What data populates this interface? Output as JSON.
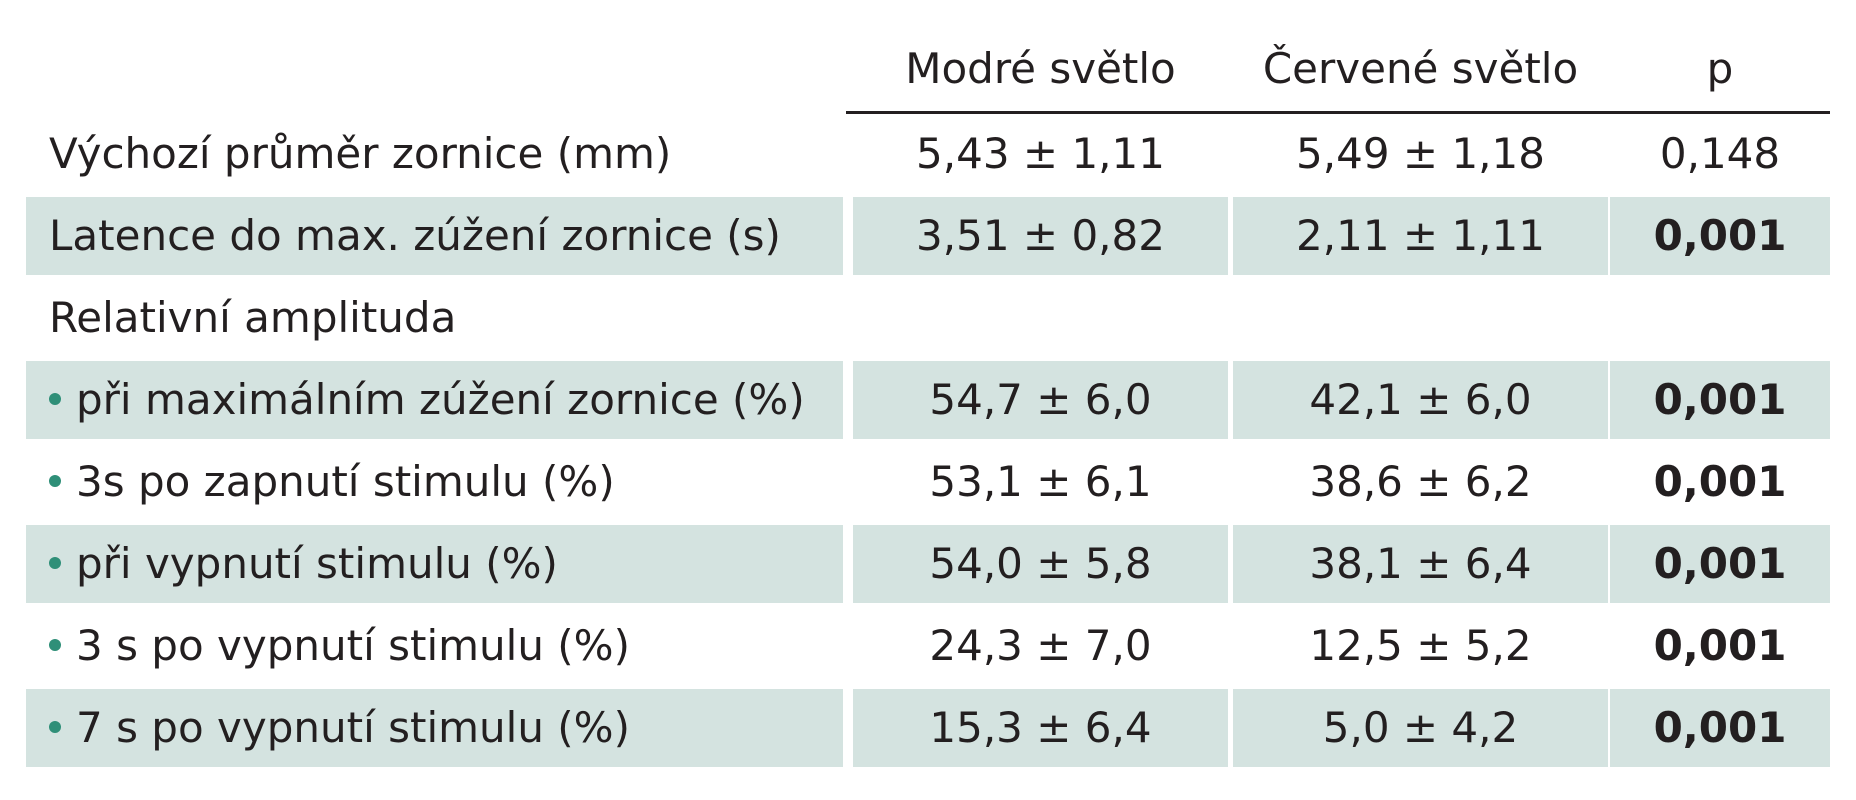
{
  "header": {
    "col_blue": "Modré světlo",
    "col_red": "Červené světlo",
    "col_p": "p"
  },
  "colors": {
    "row_shading": "#d4e3e0",
    "bullet": "#2f8f78",
    "text": "#231f20"
  },
  "rows": [
    {
      "label": "Výchozí průměr zornice (mm)",
      "blue": "5,43 ± 1,11",
      "red": "5,49 ± 1,18",
      "p": "0,148",
      "p_bold": false,
      "bullet": false,
      "shaded": false
    },
    {
      "label": "Latence do max. zúžení zornice (s)",
      "blue": "3,51 ± 0,82",
      "red": "2,11 ± 1,11",
      "p": "0,001",
      "p_bold": true,
      "bullet": false,
      "shaded": true
    },
    {
      "label": "Relativní amplituda",
      "blue": "",
      "red": "",
      "p": "",
      "p_bold": false,
      "bullet": false,
      "shaded": false
    },
    {
      "label": "při maximálním zúžení zornice (%)",
      "blue": "54,7 ± 6,0",
      "red": "42,1 ± 6,0",
      "p": "0,001",
      "p_bold": true,
      "bullet": true,
      "shaded": true
    },
    {
      "label": "3s po zapnutí stimulu (%)",
      "blue": "53,1 ± 6,1",
      "red": "38,6 ± 6,2",
      "p": "0,001",
      "p_bold": true,
      "bullet": true,
      "shaded": false
    },
    {
      "label": "při vypnutí stimulu (%)",
      "blue": "54,0 ± 5,8",
      "red": "38,1 ± 6,4",
      "p": "0,001",
      "p_bold": true,
      "bullet": true,
      "shaded": true
    },
    {
      "label": "3 s po vypnutí stimulu (%)",
      "blue": "24,3 ± 7,0",
      "red": "12,5 ± 5,2",
      "p": "0,001",
      "p_bold": true,
      "bullet": true,
      "shaded": false
    },
    {
      "label": "7 s po vypnutí stimulu (%)",
      "blue": "15,3 ± 6,4",
      "red": "5,0 ± 4,2",
      "p": "0,001",
      "p_bold": true,
      "bullet": true,
      "shaded": true
    }
  ]
}
